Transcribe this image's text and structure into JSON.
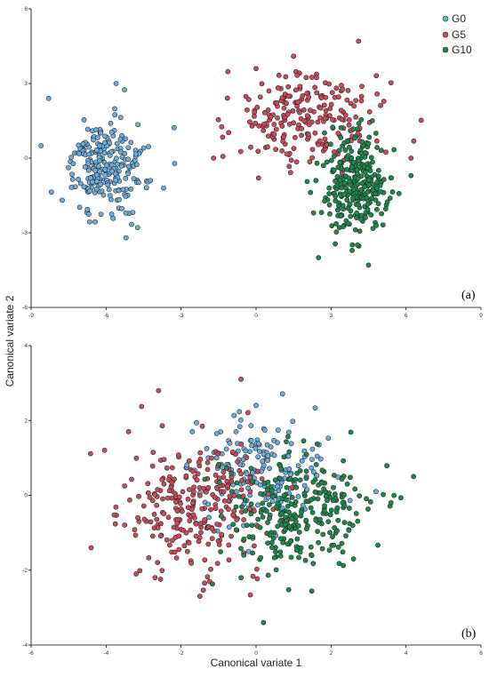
{
  "chart_data": [
    {
      "type": "scatter",
      "panel_label": "(a)",
      "xlim": [
        -9,
        9
      ],
      "ylim": [
        -6,
        6
      ],
      "x_ticks": [
        "-9",
        "-6",
        "-3",
        "0",
        "3",
        "6",
        "9"
      ],
      "y_ticks": [
        "-6",
        "-3",
        "0",
        "3",
        "6"
      ],
      "grid": false,
      "legend_position": "top-right",
      "series": [
        {
          "name": "G0",
          "color": "#6aaee0",
          "center": [
            -6.0,
            -0.3
          ],
          "spread": [
            0.8,
            0.9
          ],
          "count": 240,
          "extremes": [
            [
              -8.3,
              2.4
            ],
            [
              -5.6,
              3.0
            ],
            [
              -5.2,
              -3.2
            ],
            [
              -3.7,
              -1.2
            ],
            [
              -8.6,
              0.5
            ]
          ]
        },
        {
          "name": "G5",
          "color": "#cc4a5a",
          "center": [
            2.0,
            1.6
          ],
          "spread": [
            1.5,
            0.9
          ],
          "count": 230,
          "extremes": [
            [
              4.1,
              4.7
            ],
            [
              1.5,
              4.1
            ],
            [
              -1.7,
              0.0
            ],
            [
              6.2,
              0.0
            ],
            [
              0.1,
              -0.8
            ]
          ]
        },
        {
          "name": "G10",
          "color": "#1a8a4a",
          "center": [
            3.9,
            -1.0
          ],
          "spread": [
            0.65,
            1.0
          ],
          "count": 280,
          "extremes": [
            [
              4.5,
              -4.3
            ],
            [
              2.5,
              -4.0
            ],
            [
              6.2,
              -0.7
            ],
            [
              4.8,
              1.0
            ],
            [
              2.3,
              -2.2
            ]
          ]
        }
      ]
    },
    {
      "type": "scatter",
      "panel_label": "(b)",
      "xlim": [
        -6,
        6
      ],
      "ylim": [
        -4,
        4
      ],
      "x_ticks": [
        "-6",
        "-4",
        "-2",
        "0",
        "2",
        "4",
        "6"
      ],
      "y_ticks": [
        "-4",
        "-2",
        "0",
        "2",
        "4"
      ],
      "grid": false,
      "series": [
        {
          "name": "G0",
          "color": "#6aaee0",
          "center": [
            0.1,
            0.6
          ],
          "spread": [
            0.9,
            0.8
          ],
          "count": 190,
          "extremes": [
            [
              0.0,
              2.4
            ],
            [
              -1.7,
              1.7
            ],
            [
              3.2,
              0.1
            ],
            [
              -0.2,
              -1.5
            ]
          ]
        },
        {
          "name": "G5",
          "color": "#cc4a5a",
          "center": [
            -1.6,
            -0.4
          ],
          "spread": [
            1.0,
            0.85
          ],
          "count": 270,
          "extremes": [
            [
              -3.4,
              1.7
            ],
            [
              -2.6,
              2.8
            ],
            [
              -4.4,
              -1.4
            ],
            [
              -3.2,
              -2.1
            ],
            [
              -0.4,
              3.1
            ]
          ]
        },
        {
          "name": "G10",
          "color": "#1a8a4a",
          "center": [
            1.3,
            -0.4
          ],
          "spread": [
            0.95,
            0.8
          ],
          "count": 270,
          "extremes": [
            [
              0.2,
              -3.4
            ],
            [
              4.2,
              0.5
            ],
            [
              3.6,
              -0.2
            ],
            [
              2.6,
              -1.7
            ],
            [
              -0.4,
              -2.2
            ]
          ]
        }
      ]
    }
  ],
  "legend": [
    {
      "label": "G0",
      "color": "#6aaee0"
    },
    {
      "label": "G5",
      "color": "#cc4a5a"
    },
    {
      "label": "G10",
      "color": "#1a8a4a"
    }
  ],
  "axes": {
    "xlabel": "Canonical variate 1",
    "ylabel": "Canonical variate 2"
  }
}
